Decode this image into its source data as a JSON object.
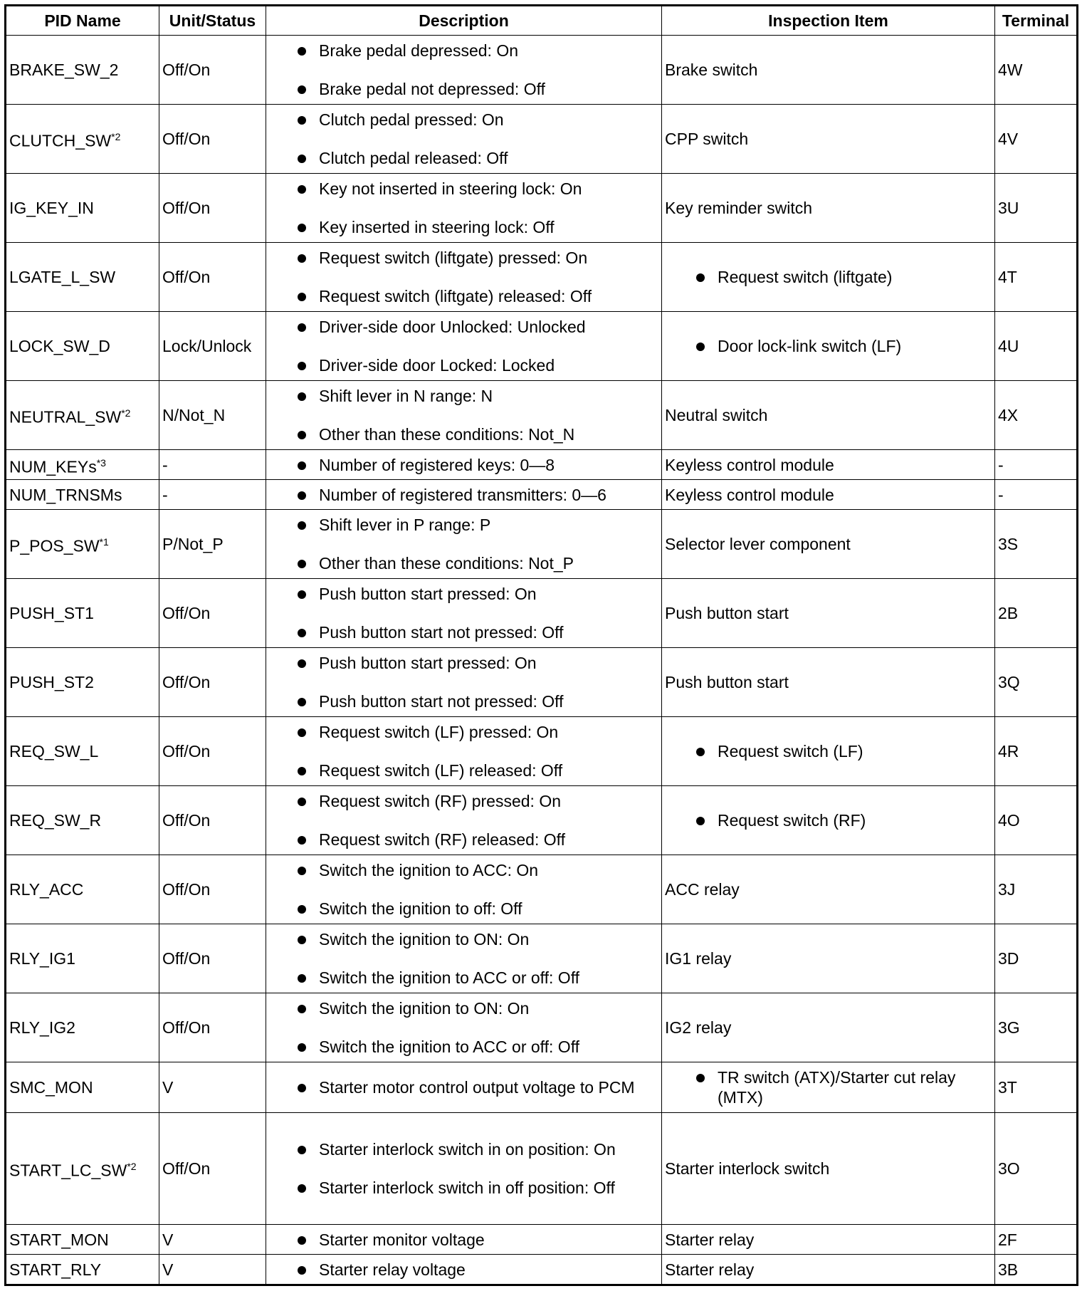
{
  "headers": [
    "PID Name",
    "Unit/Status",
    "Description",
    "Inspection Item",
    "Terminal"
  ],
  "rows": [
    {
      "pid": "BRAKE_SW_2",
      "sup": "",
      "unit": "Off/On",
      "desc": [
        "Brake pedal depressed: On",
        "Brake pedal not depressed: Off"
      ],
      "insp": "Brake switch",
      "insp_bullet": false,
      "term": "4W"
    },
    {
      "pid": "CLUTCH_SW",
      "sup": "*2",
      "unit": "Off/On",
      "desc": [
        "Clutch pedal pressed: On",
        "Clutch pedal released: Off"
      ],
      "insp": "CPP switch",
      "insp_bullet": false,
      "term": "4V"
    },
    {
      "pid": "IG_KEY_IN",
      "sup": "",
      "unit": "Off/On",
      "desc": [
        "Key not inserted in steering lock: On",
        "Key inserted in steering lock: Off"
      ],
      "insp": "Key reminder switch",
      "insp_bullet": false,
      "term": "3U"
    },
    {
      "pid": "LGATE_L_SW",
      "sup": "",
      "unit": "Off/On",
      "desc": [
        "Request switch (liftgate) pressed: On",
        "Request switch (liftgate) released: Off"
      ],
      "insp": "Request switch (liftgate)",
      "insp_bullet": true,
      "term": "4T"
    },
    {
      "pid": "LOCK_SW_D",
      "sup": "",
      "unit": "Lock/Unlock",
      "desc": [
        "Driver-side door Unlocked: Unlocked",
        "Driver-side door Locked: Locked"
      ],
      "insp": "Door lock-link switch (LF)",
      "insp_bullet": true,
      "term": "4U"
    },
    {
      "pid": "NEUTRAL_SW",
      "sup": "*2",
      "unit": "N/Not_N",
      "desc": [
        "Shift lever in N range: N",
        "Other than these conditions: Not_N"
      ],
      "insp": "Neutral switch",
      "insp_bullet": false,
      "term": "4X"
    },
    {
      "pid": "NUM_KEYs",
      "sup": "*3",
      "unit": "-",
      "desc": [
        "Number of registered keys: 0—8"
      ],
      "insp": "Keyless control module",
      "insp_bullet": false,
      "term": "-"
    },
    {
      "pid": "NUM_TRNSMs",
      "sup": "",
      "unit": "-",
      "desc": [
        "Number of registered transmitters: 0—6"
      ],
      "insp": "Keyless control module",
      "insp_bullet": false,
      "term": "-"
    },
    {
      "pid": "P_POS_SW",
      "sup": "*1",
      "unit": "P/Not_P",
      "desc": [
        "Shift lever in P range: P",
        "Other than these conditions: Not_P"
      ],
      "insp": "Selector lever component",
      "insp_bullet": false,
      "term": "3S"
    },
    {
      "pid": "PUSH_ST1",
      "sup": "",
      "unit": "Off/On",
      "desc": [
        "Push button start pressed: On",
        "Push button start not pressed: Off"
      ],
      "insp": "Push button start",
      "insp_bullet": false,
      "term": "2B"
    },
    {
      "pid": "PUSH_ST2",
      "sup": "",
      "unit": "Off/On",
      "desc": [
        "Push button start pressed: On",
        "Push button start not pressed: Off"
      ],
      "insp": "Push button start",
      "insp_bullet": false,
      "term": "3Q"
    },
    {
      "pid": "REQ_SW_L",
      "sup": "",
      "unit": "Off/On",
      "desc": [
        "Request switch (LF) pressed: On",
        "Request switch (LF) released: Off"
      ],
      "insp": "Request switch (LF)",
      "insp_bullet": true,
      "term": "4R"
    },
    {
      "pid": "REQ_SW_R",
      "sup": "",
      "unit": "Off/On",
      "desc": [
        "Request switch (RF) pressed: On",
        "Request switch (RF) released: Off"
      ],
      "insp": "Request switch (RF)",
      "insp_bullet": true,
      "term": "4O"
    },
    {
      "pid": "RLY_ACC",
      "sup": "",
      "unit": "Off/On",
      "desc": [
        "Switch the ignition to ACC: On",
        "Switch the ignition to off: Off"
      ],
      "insp": "ACC relay",
      "insp_bullet": false,
      "term": "3J"
    },
    {
      "pid": "RLY_IG1",
      "sup": "",
      "unit": "Off/On",
      "desc": [
        "Switch the ignition to ON: On",
        "Switch the ignition to ACC or off: Off"
      ],
      "insp": "IG1 relay",
      "insp_bullet": false,
      "term": "3D"
    },
    {
      "pid": "RLY_IG2",
      "sup": "",
      "unit": "Off/On",
      "desc": [
        "Switch the ignition to ON: On",
        "Switch the ignition to ACC or off: Off"
      ],
      "insp": "IG2 relay",
      "insp_bullet": false,
      "term": "3G"
    },
    {
      "pid": "SMC_MON",
      "sup": "",
      "unit": "V",
      "desc": [
        "Starter motor control output voltage to PCM"
      ],
      "insp": "TR switch (ATX)/Starter cut relay (MTX)",
      "insp_bullet": true,
      "term": "3T"
    },
    {
      "pid": "START_LC_SW",
      "sup": "*2",
      "unit": "Off/On",
      "desc": [
        "Starter interlock switch in on position: On",
        "Starter interlock switch in off position: Off"
      ],
      "insp": "Starter interlock switch",
      "insp_bullet": false,
      "term": "3O"
    },
    {
      "pid": "START_MON",
      "sup": "",
      "unit": "V",
      "desc": [
        "Starter monitor voltage"
      ],
      "insp": "Starter relay",
      "insp_bullet": false,
      "term": "2F"
    },
    {
      "pid": "START_RLY",
      "sup": "",
      "unit": "V",
      "desc": [
        "Starter relay voltage"
      ],
      "insp": "Starter relay",
      "insp_bullet": false,
      "term": "3B"
    }
  ]
}
